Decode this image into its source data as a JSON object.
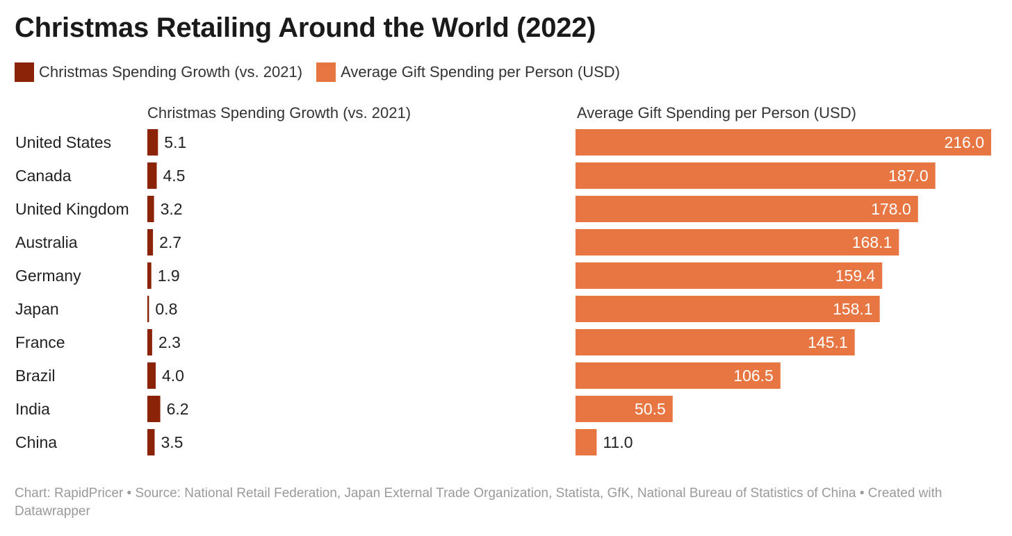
{
  "title": "Christmas Retailing Around the World (2022)",
  "legend": [
    {
      "label": "Christmas Spending Growth (vs. 2021)",
      "color": "#8a2308"
    },
    {
      "label": "Average Gift Spending per Person (USD)",
      "color": "#e87642"
    }
  ],
  "footer": {
    "text": "Chart: RapidPricer • Source: National Retail Federation, Japan External Trade Organization, Statista, GfK, National Bureau of Statistics of China • Created with Datawrapper"
  },
  "chart_data": {
    "type": "bar",
    "orientation": "horizontal",
    "title": "Christmas Retailing Around the World (2022)",
    "categories": [
      "United States",
      "Canada",
      "United Kingdom",
      "Australia",
      "Germany",
      "Japan",
      "France",
      "Brazil",
      "India",
      "China"
    ],
    "series": [
      {
        "name": "Christmas Spending Growth (vs. 2021)",
        "color": "#8a2308",
        "values": [
          5.1,
          4.5,
          3.2,
          2.7,
          1.9,
          0.8,
          2.3,
          4.0,
          6.2,
          3.5
        ],
        "labels": [
          "5.1",
          "4.5",
          "3.2",
          "2.7",
          "1.9",
          "0.8",
          "2.3",
          "4.0",
          "6.2",
          "3.5"
        ],
        "xlim": [
          0,
          150
        ]
      },
      {
        "name": "Average Gift Spending per Person (USD)",
        "color": "#e87642",
        "values": [
          216.0,
          187.0,
          178.0,
          168.1,
          159.4,
          158.1,
          145.1,
          106.5,
          50.5,
          11.0
        ],
        "labels": [
          "216.0",
          "187.0",
          "178.0",
          "168.1",
          "159.4",
          "158.1",
          "145.1",
          "106.5",
          "50.5",
          "11.0"
        ],
        "xlim": [
          0,
          216
        ]
      }
    ],
    "grid": false,
    "legend_position": "top-left"
  }
}
